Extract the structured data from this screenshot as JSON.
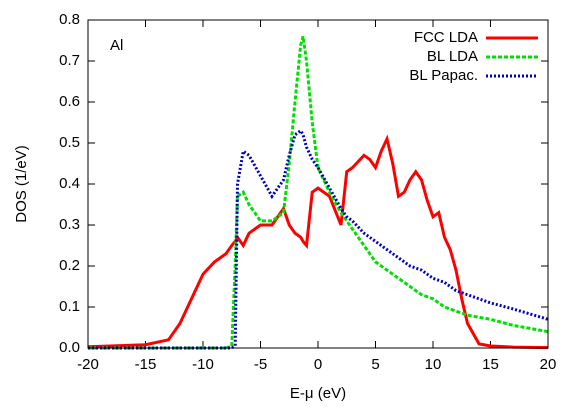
{
  "chart_data": {
    "type": "line",
    "annotation": "Al",
    "xlabel": "E-μ (eV)",
    "ylabel": "DOS (1/eV)",
    "x": [
      -20,
      -15,
      -13,
      -12,
      -11,
      -10,
      -9,
      -8,
      -7.5,
      -7.2,
      -7,
      -6.5,
      -6,
      -5,
      -4,
      -3,
      -2.5,
      -2,
      -1.5,
      -1.3,
      -1,
      -0.5,
      0,
      1,
      2,
      2.5,
      3,
      4,
      4.5,
      5,
      5.5,
      6,
      6.5,
      7,
      7.5,
      8,
      8.5,
      9,
      9.5,
      10,
      10.5,
      11,
      11.5,
      12,
      12.5,
      13,
      14,
      15,
      17,
      20
    ],
    "series": [
      {
        "name": "FCC LDA",
        "color": "#ff0000",
        "dash": "solid",
        "values": [
          0.003,
          0.008,
          0.02,
          0.06,
          0.12,
          0.18,
          0.21,
          0.23,
          0.25,
          0.26,
          0.27,
          0.25,
          0.28,
          0.3,
          0.3,
          0.34,
          0.3,
          0.28,
          0.27,
          0.26,
          0.25,
          0.38,
          0.39,
          0.37,
          0.3,
          0.43,
          0.44,
          0.47,
          0.46,
          0.44,
          0.48,
          0.51,
          0.45,
          0.37,
          0.38,
          0.41,
          0.43,
          0.41,
          0.36,
          0.32,
          0.33,
          0.27,
          0.24,
          0.19,
          0.12,
          0.06,
          0.01,
          0.005,
          0.002,
          0.001
        ]
      },
      {
        "name": "BL LDA",
        "color": "#00e000",
        "dash": "dashed",
        "values": [
          0,
          0,
          0,
          0,
          0,
          0,
          0,
          0,
          0.005,
          0.2,
          0.37,
          0.38,
          0.35,
          0.31,
          0.31,
          0.33,
          0.45,
          0.6,
          0.74,
          0.76,
          0.7,
          0.55,
          0.44,
          0.38,
          0.33,
          0.31,
          0.29,
          0.25,
          0.23,
          0.21,
          0.2,
          0.19,
          0.18,
          0.17,
          0.16,
          0.15,
          0.14,
          0.13,
          0.125,
          0.12,
          0.11,
          0.1,
          0.095,
          0.09,
          0.085,
          0.08,
          0.075,
          0.07,
          0.055,
          0.04
        ]
      },
      {
        "name": "BL Papac.",
        "color": "#0000c0",
        "dash": "dotted",
        "values": [
          0,
          0,
          0,
          0,
          0,
          0,
          0,
          0,
          0,
          0.005,
          0.4,
          0.48,
          0.47,
          0.42,
          0.37,
          0.41,
          0.47,
          0.52,
          0.53,
          0.52,
          0.49,
          0.46,
          0.44,
          0.39,
          0.34,
          0.32,
          0.31,
          0.28,
          0.27,
          0.26,
          0.25,
          0.24,
          0.23,
          0.22,
          0.21,
          0.2,
          0.195,
          0.19,
          0.18,
          0.17,
          0.165,
          0.16,
          0.15,
          0.14,
          0.135,
          0.13,
          0.12,
          0.11,
          0.095,
          0.07
        ]
      }
    ],
    "xlim": [
      -20,
      20
    ],
    "xticks": [
      -20,
      -15,
      -10,
      -5,
      0,
      5,
      10,
      15,
      20
    ],
    "ylim": [
      0,
      0.8
    ],
    "yticks": [
      {
        "value": 0,
        "label": "0.0"
      },
      0.1,
      0.2,
      0.3,
      0.4,
      0.5,
      0.6,
      0.7,
      0.8
    ],
    "legend": "upper right"
  }
}
